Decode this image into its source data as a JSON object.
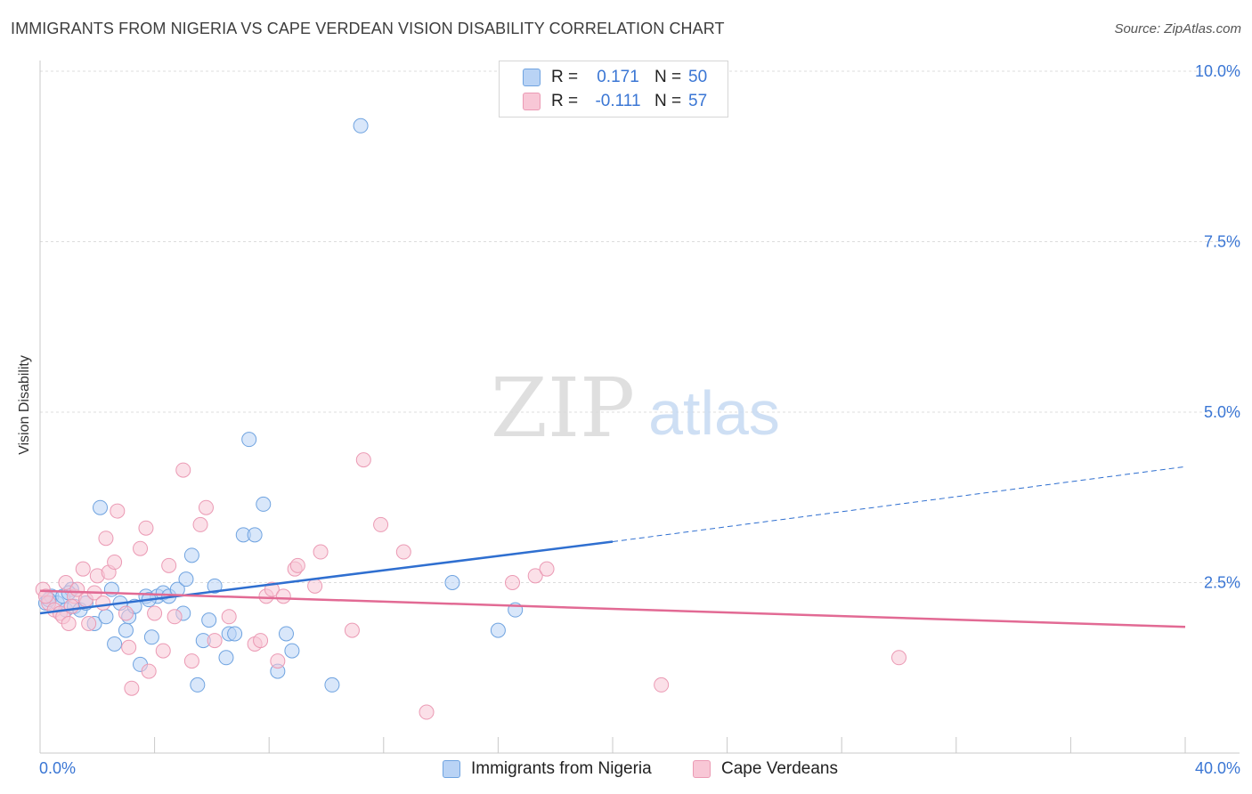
{
  "header": {
    "title": "IMMIGRANTS FROM NIGERIA VS CAPE VERDEAN VISION DISABILITY CORRELATION CHART",
    "source": "Source: ZipAtlas.com"
  },
  "watermark": {
    "zip": "ZIP",
    "atlas": "atlas"
  },
  "legend": {
    "r_label": "R =",
    "n_label": "N =",
    "rows": [
      {
        "name": "Immigrants from Nigeria",
        "r": "0.171",
        "n": "50",
        "color": "#6fa3e0"
      },
      {
        "name": "Cape Verdeans",
        "r": "-0.111",
        "n": "57",
        "color": "#eb9ab4"
      }
    ]
  },
  "chart_data": {
    "type": "scatter",
    "title": "IMMIGRANTS FROM NIGERIA VS CAPE VERDEAN VISION DISABILITY CORRELATION CHART",
    "xlabel": "",
    "ylabel": "Vision Disability",
    "xlim": [
      0,
      40
    ],
    "ylim": [
      0,
      10
    ],
    "x_tick_labels": [
      "0.0%",
      "40.0%"
    ],
    "y_ticks": [
      2.5,
      5.0,
      7.5,
      10.0
    ],
    "y_tick_labels": [
      "2.5%",
      "5.0%",
      "7.5%",
      "10.0%"
    ],
    "grid": true,
    "series": [
      {
        "name": "Immigrants from Nigeria",
        "color": "#6fa3e0",
        "fill": "#b9d3f5",
        "trend": {
          "x": [
            0,
            20
          ],
          "y": [
            2.05,
            3.1
          ],
          "dashed_to": [
            40,
            4.2
          ]
        },
        "points": [
          [
            0.2,
            2.2
          ],
          [
            0.4,
            2.3
          ],
          [
            0.6,
            2.2
          ],
          [
            0.8,
            2.3
          ],
          [
            0.9,
            2.1
          ],
          [
            1.1,
            2.4
          ],
          [
            1.2,
            2.15
          ],
          [
            1.4,
            2.1
          ],
          [
            1.6,
            2.2
          ],
          [
            1.9,
            1.9
          ],
          [
            2.1,
            3.6
          ],
          [
            2.3,
            2.0
          ],
          [
            2.5,
            2.4
          ],
          [
            2.6,
            1.6
          ],
          [
            2.8,
            2.2
          ],
          [
            3.0,
            1.8
          ],
          [
            3.1,
            2.0
          ],
          [
            3.3,
            2.15
          ],
          [
            3.5,
            1.3
          ],
          [
            3.7,
            2.3
          ],
          [
            3.9,
            1.7
          ],
          [
            4.1,
            2.3
          ],
          [
            4.3,
            2.35
          ],
          [
            4.5,
            2.3
          ],
          [
            4.8,
            2.4
          ],
          [
            5.0,
            2.05
          ],
          [
            5.1,
            2.55
          ],
          [
            5.3,
            2.9
          ],
          [
            5.5,
            1.0
          ],
          [
            5.7,
            1.65
          ],
          [
            5.9,
            1.95
          ],
          [
            6.1,
            2.45
          ],
          [
            6.5,
            1.4
          ],
          [
            6.6,
            1.75
          ],
          [
            6.8,
            1.75
          ],
          [
            7.1,
            3.2
          ],
          [
            7.3,
            4.6
          ],
          [
            7.5,
            3.2
          ],
          [
            7.8,
            3.65
          ],
          [
            8.3,
            1.2
          ],
          [
            8.6,
            1.75
          ],
          [
            8.8,
            1.5
          ],
          [
            10.2,
            1.0
          ],
          [
            11.2,
            9.2
          ],
          [
            14.4,
            2.5
          ],
          [
            16.0,
            1.8
          ],
          [
            16.6,
            2.1
          ],
          [
            0.3,
            2.25
          ],
          [
            1.0,
            2.35
          ],
          [
            3.8,
            2.25
          ]
        ]
      },
      {
        "name": "Cape Verdeans",
        "color": "#eb9ab4",
        "fill": "#f8c7d6",
        "trend": {
          "x": [
            0,
            40
          ],
          "y": [
            2.38,
            1.85
          ]
        },
        "points": [
          [
            0.1,
            2.4
          ],
          [
            0.3,
            2.2
          ],
          [
            0.5,
            2.1
          ],
          [
            0.7,
            2.05
          ],
          [
            0.8,
            2.0
          ],
          [
            0.9,
            2.5
          ],
          [
            1.0,
            1.9
          ],
          [
            1.2,
            2.3
          ],
          [
            1.3,
            2.4
          ],
          [
            1.5,
            2.7
          ],
          [
            1.6,
            2.25
          ],
          [
            1.7,
            1.9
          ],
          [
            1.9,
            2.35
          ],
          [
            2.0,
            2.6
          ],
          [
            2.2,
            2.2
          ],
          [
            2.3,
            3.15
          ],
          [
            2.4,
            2.65
          ],
          [
            2.6,
            2.8
          ],
          [
            2.7,
            3.55
          ],
          [
            3.0,
            2.05
          ],
          [
            3.1,
            1.55
          ],
          [
            3.2,
            0.95
          ],
          [
            3.5,
            3.0
          ],
          [
            3.7,
            3.3
          ],
          [
            3.8,
            1.2
          ],
          [
            4.0,
            2.05
          ],
          [
            4.3,
            1.5
          ],
          [
            4.5,
            2.75
          ],
          [
            4.7,
            2.0
          ],
          [
            5.0,
            4.15
          ],
          [
            5.3,
            1.35
          ],
          [
            5.6,
            3.35
          ],
          [
            5.8,
            3.6
          ],
          [
            6.1,
            1.65
          ],
          [
            6.6,
            2.0
          ],
          [
            7.5,
            1.6
          ],
          [
            7.7,
            1.65
          ],
          [
            7.9,
            2.3
          ],
          [
            8.1,
            2.4
          ],
          [
            8.3,
            1.35
          ],
          [
            8.5,
            2.3
          ],
          [
            8.9,
            2.7
          ],
          [
            9.0,
            2.75
          ],
          [
            9.6,
            2.45
          ],
          [
            9.8,
            2.95
          ],
          [
            10.9,
            1.8
          ],
          [
            11.3,
            4.3
          ],
          [
            11.9,
            3.35
          ],
          [
            12.7,
            2.95
          ],
          [
            13.5,
            0.6
          ],
          [
            16.5,
            2.5
          ],
          [
            17.3,
            2.6
          ],
          [
            17.7,
            2.7
          ],
          [
            21.7,
            1.0
          ],
          [
            30.0,
            1.4
          ],
          [
            0.2,
            2.3
          ],
          [
            1.1,
            2.15
          ]
        ]
      }
    ]
  }
}
